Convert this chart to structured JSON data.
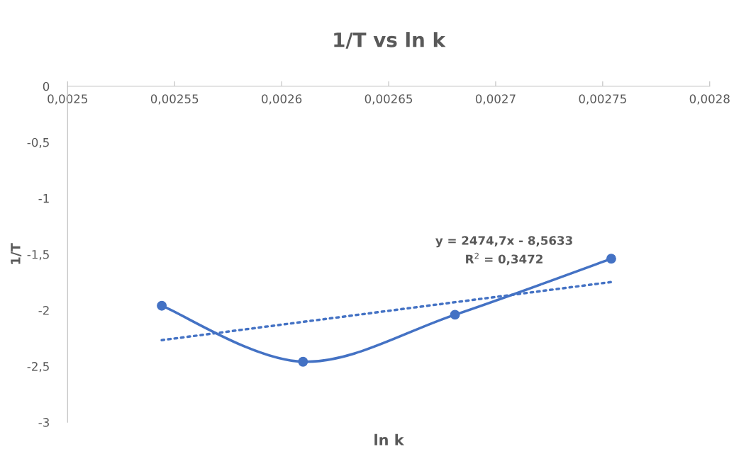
{
  "chart_data": {
    "type": "line",
    "title": "1/T vs ln k",
    "xlabel": "ln k",
    "ylabel": "1/T",
    "xlim": [
      0.0025,
      0.0028
    ],
    "ylim": [
      -3,
      0
    ],
    "xticks": [
      {
        "value": 0.0025,
        "label": "0,0025"
      },
      {
        "value": 0.00255,
        "label": "0,00255"
      },
      {
        "value": 0.0026,
        "label": "0,0026"
      },
      {
        "value": 0.00265,
        "label": "0,00265"
      },
      {
        "value": 0.0027,
        "label": "0,0027"
      },
      {
        "value": 0.00275,
        "label": "0,00275"
      },
      {
        "value": 0.0028,
        "label": "0,0028"
      }
    ],
    "yticks": [
      0,
      {
        "value": -0.5,
        "label": "-0,5"
      },
      -1,
      {
        "value": -1.5,
        "label": "-1,5"
      },
      -2,
      {
        "value": -2.5,
        "label": "-2,5"
      },
      -3
    ],
    "grid": false,
    "legend": false,
    "series": [
      {
        "color": "#4472c4",
        "marker": "circle",
        "line_style": "solid",
        "x": [
          0.002544,
          0.00261,
          0.002681,
          0.002754
        ],
        "values": [
          -1.96,
          -2.46,
          -2.04,
          -1.54
        ]
      },
      {
        "color": "#4472c4",
        "marker": "none",
        "line_style": "dotted",
        "x": [
          0.002544,
          0.002754
        ],
        "values": [
          -2.267,
          -1.748
        ]
      }
    ],
    "annotations": [
      "y = 2474,7x - 8,5633\nR$^{2}$ = 0,3472"
    ]
  }
}
